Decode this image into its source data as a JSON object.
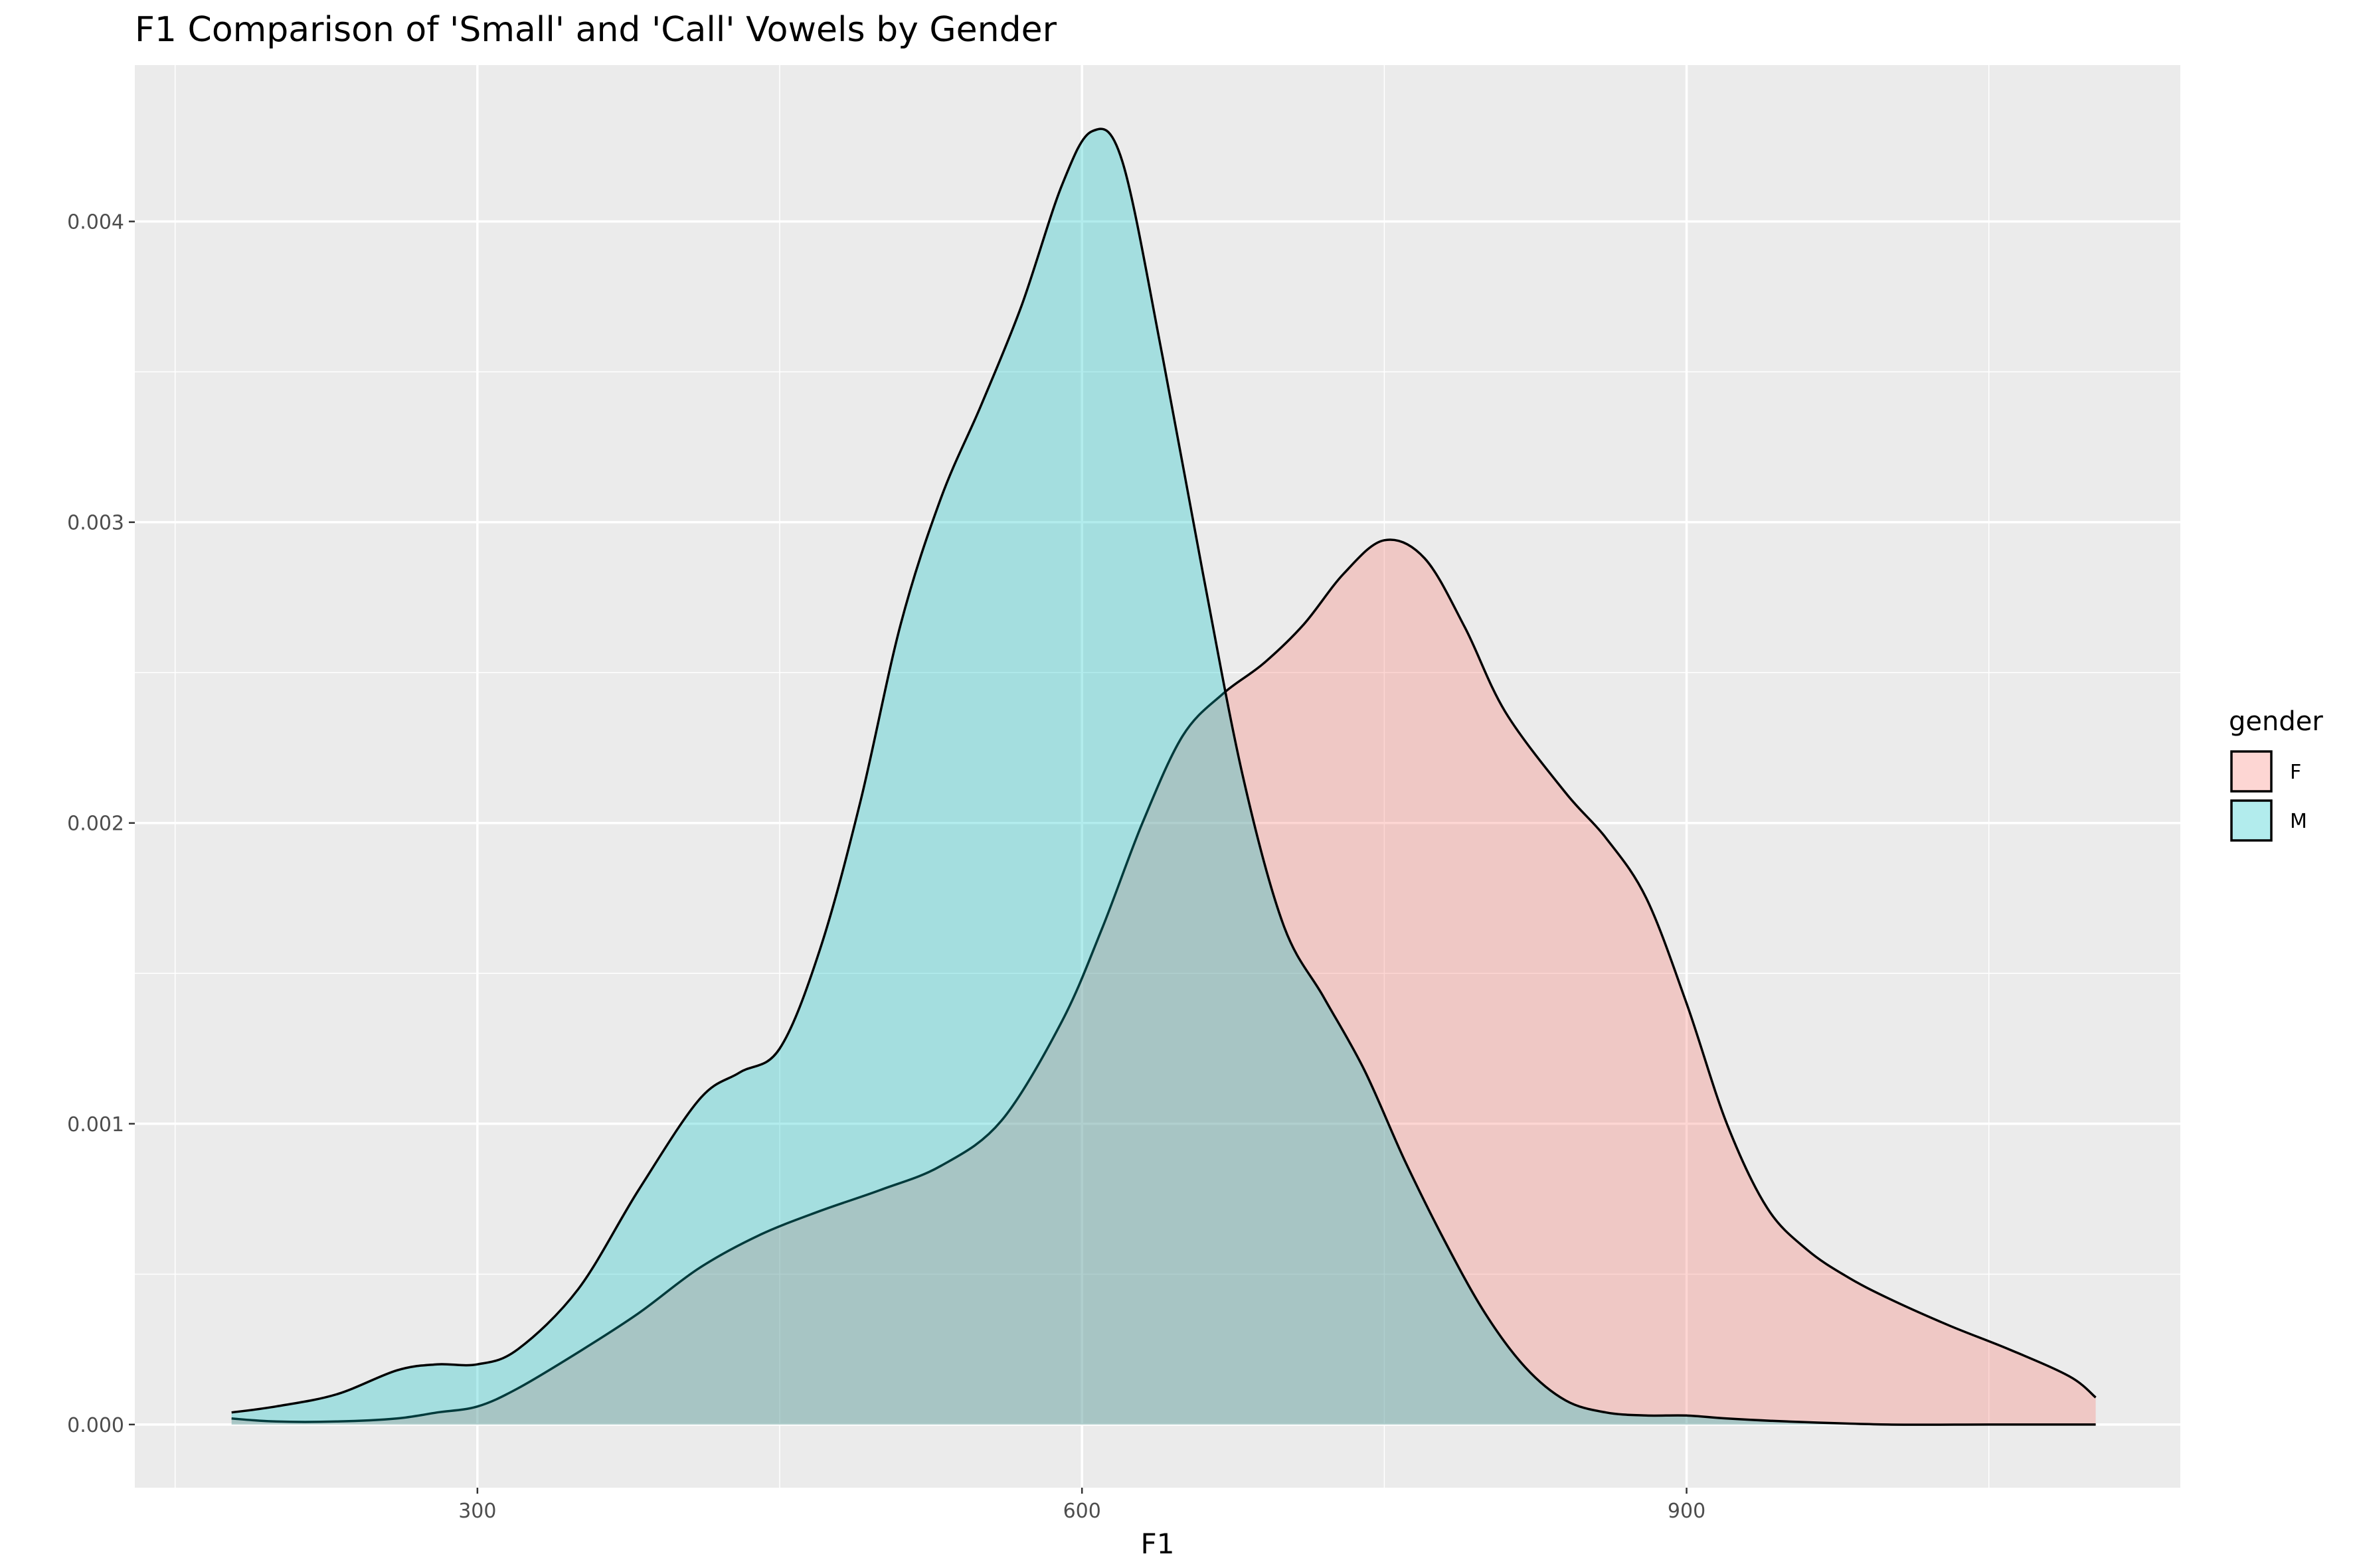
{
  "chart_data": {
    "type": "area",
    "title": "F1 Comparison of 'Small' and 'Call' Vowels by Gender",
    "xlabel": "F1",
    "ylabel": "",
    "xlim": [
      130,
      1145
    ],
    "ylim": [
      -0.00021,
      0.00452
    ],
    "x_ticks": [
      300,
      600,
      900
    ],
    "x_minor_ticks": [
      150,
      450,
      750,
      1050
    ],
    "y_ticks": [
      0.0,
      0.001,
      0.002,
      0.003,
      0.004
    ],
    "y_minor_ticks": [
      0.0005,
      0.0015,
      0.0025,
      0.0035
    ],
    "x_tick_labels": [
      "300",
      "600",
      "900"
    ],
    "y_tick_labels": [
      "0.000",
      "0.001",
      "0.002",
      "0.003",
      "0.004"
    ],
    "grid": true,
    "legend": {
      "title": "gender",
      "position": "right"
    },
    "series": [
      {
        "name": "F",
        "color": "#F8766D",
        "x": [
          178,
          200,
          230,
          260,
          280,
          300,
          320,
          350,
          380,
          410,
          440,
          470,
          500,
          530,
          560,
          590,
          610,
          630,
          650,
          670,
          690,
          710,
          730,
          750,
          770,
          790,
          810,
          840,
          860,
          880,
          900,
          920,
          940,
          960,
          980,
          1000,
          1030,
          1060,
          1090,
          1103
        ],
        "y": [
          2e-05,
          1e-05,
          1e-05,
          2e-05,
          4e-05,
          6e-05,
          0.00012,
          0.00024,
          0.00037,
          0.00052,
          0.00063,
          0.00071,
          0.00078,
          0.00086,
          0.00101,
          0.00134,
          0.00165,
          0.002,
          0.00229,
          0.00243,
          0.00253,
          0.00266,
          0.00283,
          0.00294,
          0.00288,
          0.00265,
          0.00237,
          0.0021,
          0.00195,
          0.00175,
          0.0014,
          0.001,
          0.00072,
          0.00058,
          0.00049,
          0.00042,
          0.00033,
          0.00025,
          0.00016,
          9e-05
        ]
      },
      {
        "name": "M",
        "color": "#00BFC4",
        "x": [
          178,
          200,
          230,
          260,
          280,
          300,
          320,
          350,
          380,
          410,
          430,
          450,
          470,
          490,
          510,
          530,
          550,
          570,
          590,
          605,
          620,
          640,
          660,
          680,
          700,
          720,
          740,
          760,
          780,
          800,
          820,
          840,
          860,
          880,
          900,
          920,
          950,
          1000,
          1050,
          1103
        ],
        "y": [
          4e-05,
          6e-05,
          0.0001,
          0.00018,
          0.0002,
          0.0002,
          0.00025,
          0.00045,
          0.00078,
          0.00108,
          0.00117,
          0.00125,
          0.00158,
          0.00207,
          0.00266,
          0.00308,
          0.00339,
          0.00372,
          0.00412,
          0.0043,
          0.0042,
          0.00355,
          0.00283,
          0.00215,
          0.00166,
          0.00142,
          0.00118,
          0.00088,
          0.00061,
          0.00037,
          0.00019,
          8e-05,
          4e-05,
          3e-05,
          3e-05,
          2e-05,
          1e-05,
          0.0,
          0.0,
          0.0
        ]
      }
    ]
  }
}
